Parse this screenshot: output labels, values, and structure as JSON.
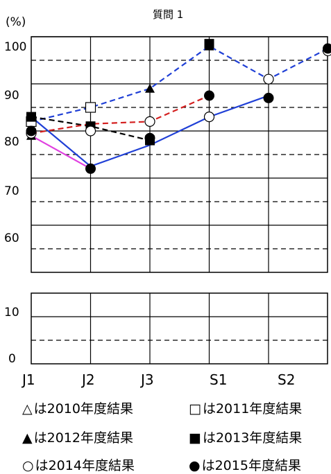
{
  "chart_data": {
    "type": "line",
    "title": "質問 1",
    "ylabel": "(%)",
    "categories": [
      "J1",
      "J2",
      "J3",
      "S1",
      "S2",
      ""
    ],
    "yticks_upper": [
      "100",
      "90",
      "80",
      "70",
      "60"
    ],
    "yticks_lower": [
      "10",
      "0"
    ],
    "ylim_upper": [
      50,
      103
    ],
    "ylim_lower": [
      0,
      15
    ],
    "grid": true,
    "series": [
      {
        "name": "2010年度結果",
        "marker": "triangle-open",
        "color": "#000000",
        "dash": false,
        "values": [
          null,
          null,
          null,
          null,
          null,
          null
        ]
      },
      {
        "name": "2011年度結果",
        "marker": "square-open",
        "color": "#1f3fd6",
        "dash": true,
        "values": [
          82,
          85,
          null,
          null,
          null,
          null
        ]
      },
      {
        "name": "2012年度結果",
        "marker": "triangle-filled",
        "color": "#1f3fd6",
        "dash": true,
        "values": [
          79,
          null,
          89,
          98,
          null,
          null
        ]
      },
      {
        "name": "2013年度結果",
        "marker": "square-filled",
        "color": "#000000",
        "dash": true,
        "values": [
          83,
          81,
          78,
          98.5,
          null,
          null
        ]
      },
      {
        "name": "2014年度結果",
        "marker": "circle-open",
        "color": "#d42020",
        "dash": true,
        "values": [
          79.5,
          80,
          82,
          83,
          91,
          97
        ]
      },
      {
        "name": "2015年度結果",
        "marker": "circle-filled",
        "color": "#1f3fd6",
        "dash": false,
        "values": [
          80,
          72,
          78.5,
          87.5,
          87,
          97.5
        ]
      }
    ],
    "connectors": [
      {
        "name": "2011-2012 trend",
        "color": "#1f3fd6",
        "dash": true,
        "points": [
          [
            0,
            82
          ],
          [
            1,
            85
          ],
          [
            2,
            89
          ],
          [
            3,
            98
          ],
          [
            4,
            91
          ],
          [
            5,
            97.5
          ]
        ]
      },
      {
        "name": "2013 trend",
        "color": "#000000",
        "dash": true,
        "points": [
          [
            0,
            83
          ],
          [
            1,
            81
          ],
          [
            2,
            78
          ]
        ]
      },
      {
        "name": "2014 trend",
        "color": "#d42020",
        "dash": true,
        "points": [
          [
            0,
            79.5
          ],
          [
            1,
            81.5
          ],
          [
            2,
            82
          ],
          [
            3,
            87.5
          ]
        ]
      },
      {
        "name": "2015 trend",
        "color": "#1f3fd6",
        "dash": false,
        "points": [
          [
            0,
            83
          ],
          [
            1,
            72.5
          ],
          [
            2,
            77
          ],
          [
            3,
            83
          ],
          [
            4,
            87.5
          ]
        ]
      },
      {
        "name": "magenta segment",
        "color": "#e040e0",
        "dash": false,
        "points": [
          [
            0,
            79
          ],
          [
            1,
            72
          ]
        ]
      }
    ]
  },
  "legend": {
    "row1": [
      {
        "sym": "△",
        "text": "は2010年度結果"
      },
      {
        "sym": "□",
        "text": "は2011年度結果"
      }
    ],
    "row2": [
      {
        "sym": "▲",
        "text": "は2012年度結果"
      },
      {
        "sym": "■",
        "text": "は2013年度結果"
      }
    ],
    "row3": [
      {
        "sym": "○",
        "text": "は2014年度結果"
      },
      {
        "sym": "●",
        "text": "は2015年度結果"
      }
    ]
  }
}
